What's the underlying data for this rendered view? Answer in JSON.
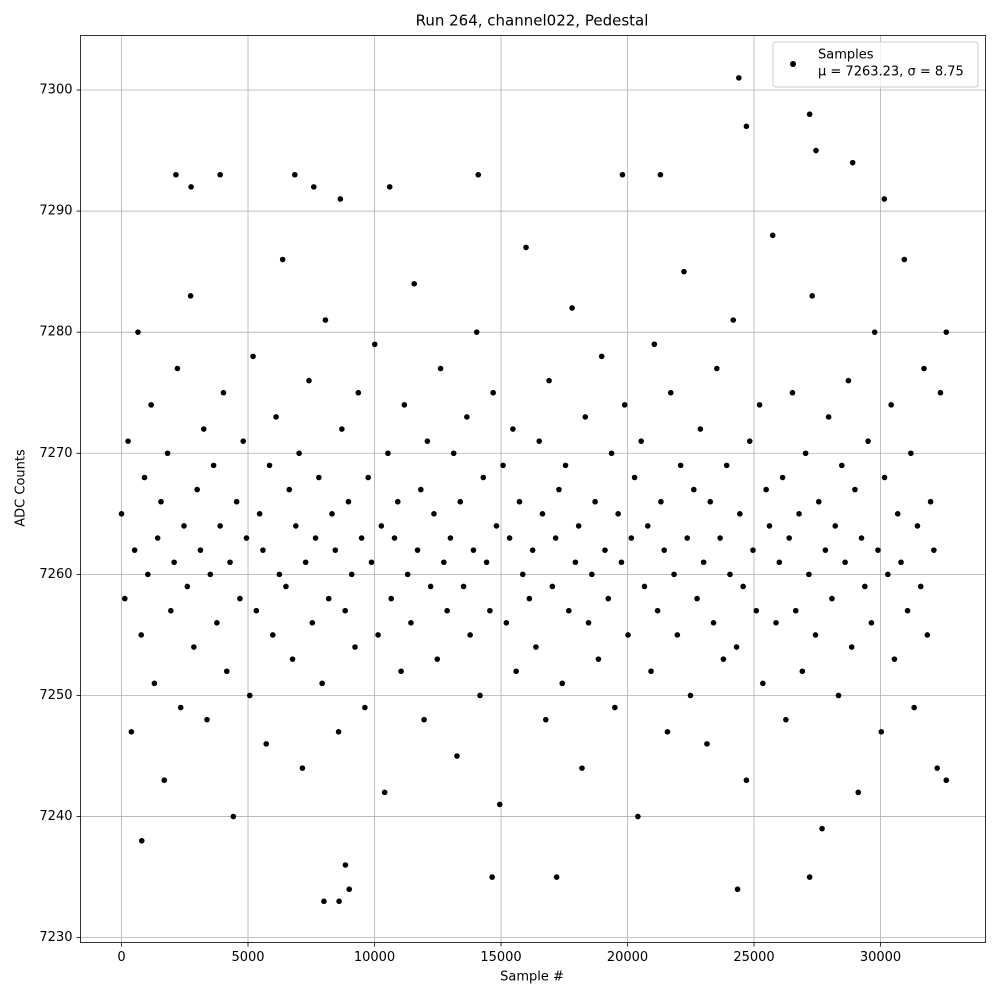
{
  "chart_data": {
    "type": "scatter",
    "title": "Run 264, channel022, Pedestal",
    "x_label": "Sample #",
    "y_label": "ADC Counts",
    "xlim": [
      -1621,
      34150
    ],
    "ylim": [
      7229.6,
      7304.5
    ],
    "xticks": [
      0,
      5000,
      10000,
      15000,
      20000,
      25000,
      30000
    ],
    "yticks": [
      7230,
      7240,
      7250,
      7260,
      7270,
      7280,
      7290,
      7300
    ],
    "grid": true,
    "legend": "upper right",
    "legend_stats": "μ = 7263.23, σ = 8.75",
    "x": [
      0,
      130,
      260,
      390,
      520,
      650,
      780,
      910,
      1040,
      1170,
      1300,
      1430,
      1560,
      1690,
      1820,
      1950,
      2080,
      2210,
      2340,
      2470,
      2600,
      2730,
      2860,
      2990,
      3120,
      3250,
      3380,
      3510,
      3640,
      3770,
      3900,
      4030,
      4160,
      4290,
      4420,
      4550,
      4680,
      4810,
      4940,
      5070,
      5200,
      5330,
      5460,
      5590,
      5720,
      5850,
      5980,
      6110,
      6240,
      6370,
      6500,
      6630,
      6760,
      6890,
      7020,
      7150,
      7280,
      7410,
      7540,
      7670,
      7800,
      7930,
      8060,
      8190,
      8320,
      8450,
      8580,
      8710,
      8840,
      8970,
      9100,
      9230,
      9360,
      9490,
      9620,
      9750,
      9880,
      10010,
      10140,
      10270,
      10400,
      10530,
      10660,
      10790,
      10920,
      11050,
      11180,
      11310,
      11440,
      11570,
      11700,
      11830,
      11960,
      12090,
      12220,
      12350,
      12480,
      12610,
      12740,
      12870,
      13000,
      13130,
      13260,
      13390,
      13520,
      13650,
      13780,
      13910,
      14040,
      14170,
      14300,
      14430,
      14560,
      14690,
      14820,
      14950,
      15080,
      15210,
      15340,
      15470,
      15600,
      15730,
      15860,
      15990,
      16120,
      16250,
      16380,
      16510,
      16640,
      16770,
      16900,
      17030,
      17160,
      17290,
      17420,
      17550,
      17680,
      17810,
      17940,
      18070,
      18200,
      18330,
      18460,
      18590,
      18720,
      18850,
      18980,
      19110,
      19240,
      19370,
      19500,
      19630,
      19760,
      19890,
      20020,
      20150,
      20280,
      20410,
      20540,
      20670,
      20800,
      20930,
      21060,
      21190,
      21320,
      21450,
      21580,
      21710,
      21840,
      21970,
      22100,
      22230,
      22360,
      22490,
      22620,
      22750,
      22880,
      23010,
      23140,
      23270,
      23400,
      23530,
      23660,
      23790,
      23920,
      24050,
      24180,
      24310,
      24440,
      24570,
      24700,
      24830,
      24960,
      25090,
      25220,
      25350,
      25480,
      25610,
      25740,
      25870,
      26000,
      26130,
      26260,
      26390,
      26520,
      26650,
      26780,
      26910,
      27040,
      27170,
      27300,
      27430,
      27560,
      27690,
      27820,
      27950,
      28080,
      28210,
      28340,
      28470,
      28600,
      28730,
      28860,
      28990,
      29120,
      29250,
      29380,
      29510,
      29640,
      29770,
      29900,
      30030,
      30160,
      30290,
      30420,
      30550,
      30680,
      30810,
      30940,
      31070,
      31200,
      31330,
      31460,
      31590,
      31720,
      31850,
      31980,
      32110,
      32240,
      32370,
      2150,
      2750,
      3900,
      6850,
      7600,
      8650,
      8000,
      8600,
      8850,
      9000,
      14650,
      17200,
      24350,
      24400,
      24700,
      27200,
      27450,
      27200,
      28900,
      19800,
      21300,
      14100,
      10600,
      30150,
      800,
      32600,
      32600
    ],
    "series": [
      {
        "name": "Samples",
        "color": "#000000",
        "values": [
          7265,
          7258,
          7271,
          7247,
          7262,
          7280,
          7255,
          7268,
          7260,
          7274,
          7251,
          7263,
          7266,
          7243,
          7270,
          7257,
          7261,
          7277,
          7249,
          7264,
          7259,
          7283,
          7254,
          7267,
          7262,
          7272,
          7248,
          7260,
          7269,
          7256,
          7264,
          7275,
          7252,
          7261,
          7240,
          7266,
          7258,
          7271,
          7263,
          7250,
          7278,
          7257,
          7265,
          7262,
          7246,
          7269,
          7255,
          7273,
          7260,
          7286,
          7259,
          7267,
          7253,
          7264,
          7270,
          7244,
          7261,
          7276,
          7256,
          7263,
          7268,
          7251,
          7281,
          7258,
          7265,
          7262,
          7247,
          7272,
          7257,
          7266,
          7260,
          7254,
          7275,
          7263,
          7249,
          7268,
          7261,
          7279,
          7255,
          7264,
          7242,
          7270,
          7258,
          7263,
          7266,
          7252,
          7274,
          7260,
          7256,
          7284,
          7262,
          7267,
          7248,
          7271,
          7259,
          7265,
          7253,
          7277,
          7261,
          7257,
          7263,
          7270,
          7245,
          7266,
          7259,
          7273,
          7255,
          7262,
          7280,
          7250,
          7268,
          7261,
          7257,
          7275,
          7264,
          7241,
          7269,
          7256,
          7263,
          7272,
          7252,
          7266,
          7260,
          7287,
          7258,
          7262,
          7254,
          7271,
          7265,
          7248,
          7276,
          7259,
          7263,
          7267,
          7251,
          7269,
          7257,
          7282,
          7261,
          7264,
          7244,
          7273,
          7256,
          7260,
          7266,
          7253,
          7278,
          7262,
          7258,
          7270,
          7249,
          7265,
          7261,
          7274,
          7255,
          7263,
          7268,
          7240,
          7271,
          7259,
          7264,
          7252,
          7279,
          7257,
          7266,
          7262,
          7247,
          7275,
          7260,
          7255,
          7269,
          7285,
          7263,
          7250,
          7267,
          7258,
          7272,
          7261,
          7246,
          7266,
          7256,
          7277,
          7263,
          7253,
          7269,
          7260,
          7281,
          7254,
          7265,
          7259,
          7243,
          7271,
          7262,
          7257,
          7274,
          7251,
          7267,
          7264,
          7288,
          7256,
          7261,
          7268,
          7248,
          7263,
          7275,
          7257,
          7265,
          7252,
          7270,
          7260,
          7283,
          7255,
          7266,
          7239,
          7262,
          7273,
          7258,
          7264,
          7250,
          7269,
          7261,
          7276,
          7254,
          7267,
          7242,
          7263,
          7259,
          7271,
          7256,
          7280,
          7262,
          7247,
          7268,
          7260,
          7274,
          7253,
          7265,
          7261,
          7286,
          7257,
          7270,
          7249,
          7264,
          7259,
          7277,
          7255,
          7266,
          7262,
          7244,
          7275,
          7293,
          7292,
          7293,
          7293,
          7292,
          7291,
          7233,
          7233,
          7236,
          7234,
          7235,
          7235,
          7234,
          7301,
          7297,
          7298,
          7295,
          7235,
          7294,
          7293,
          7293,
          7293,
          7292,
          7291,
          7238,
          7280,
          7243
        ]
      }
    ]
  }
}
